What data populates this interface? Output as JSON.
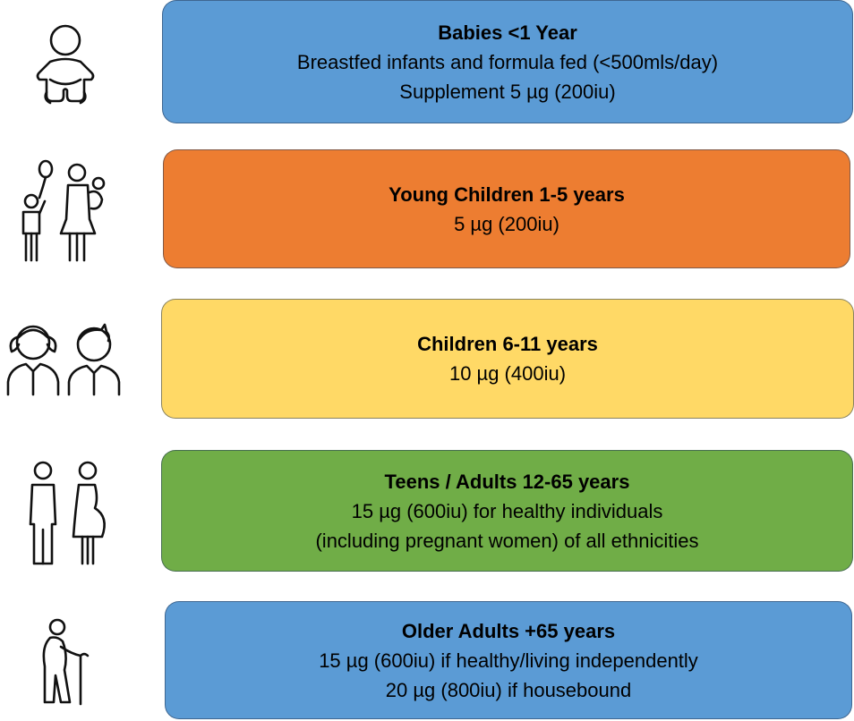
{
  "groups": [
    {
      "title": "Babies <1 Year",
      "lines": [
        "Breastfed infants and formula fed (<500mls/day)",
        "Supplement 5 µg (200iu)"
      ],
      "color": "#5B9BD5",
      "icon": "baby-icon"
    },
    {
      "title": "Young Children 1-5 years",
      "lines": [
        "5 µg (200iu)"
      ],
      "color": "#ED7D31",
      "icon": "parent-with-children-icon"
    },
    {
      "title": "Children 6-11 years",
      "lines": [
        "10 µg (400iu)"
      ],
      "color": "#FFD966",
      "icon": "girl-and-boy-icon"
    },
    {
      "title": "Teens / Adults 12-65 years",
      "lines": [
        "15 µg (600iu) for healthy individuals",
        "(including pregnant women) of all ethnicities"
      ],
      "color": "#70AD47",
      "icon": "adult-and-pregnant-woman-icon"
    },
    {
      "title": "Older Adults +65 years",
      "lines": [
        "15 µg (600iu) if healthy/living independently",
        "20 µg (800iu) if housebound"
      ],
      "color": "#5B9BD5",
      "icon": "elderly-person-with-cane-icon"
    }
  ]
}
